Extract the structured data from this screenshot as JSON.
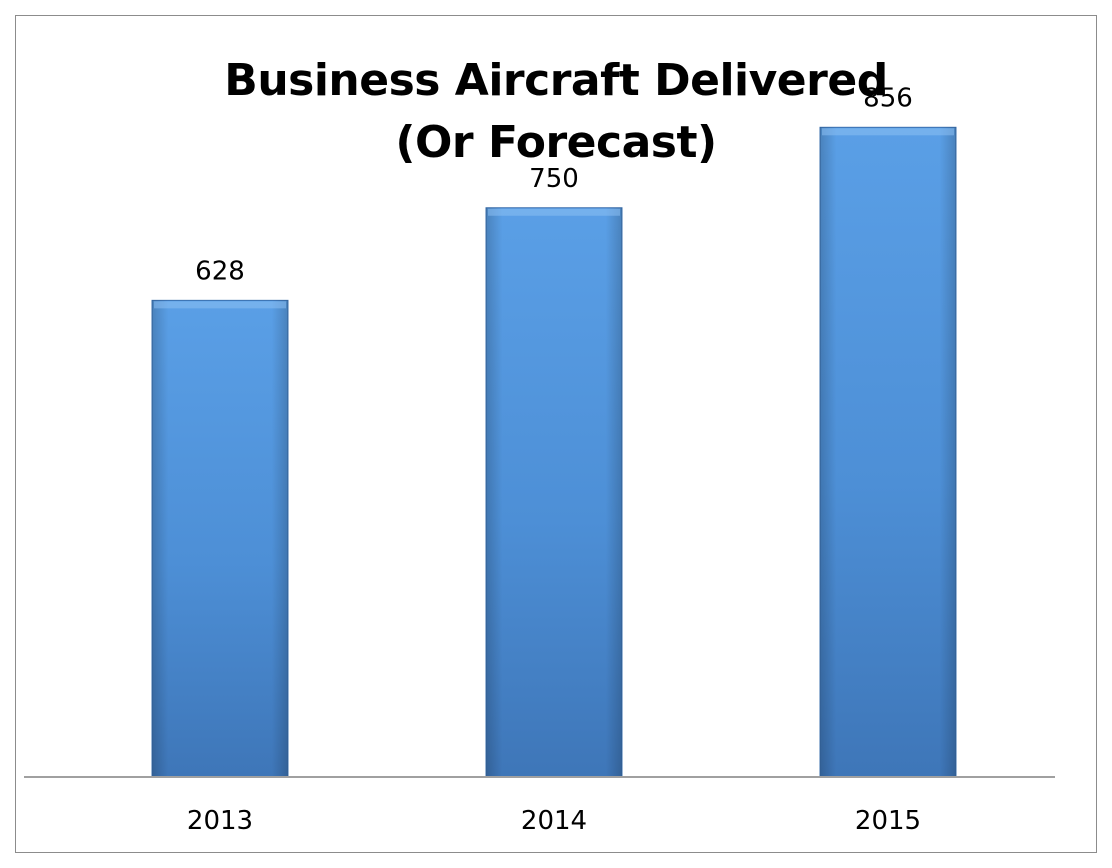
{
  "chart_data": {
    "type": "bar",
    "title": "Business Aircraft Delivered",
    "subtitle": "(Or Forecast)",
    "categories": [
      "2013",
      "2014",
      "2015"
    ],
    "values": [
      628,
      750,
      856
    ],
    "data_labels": [
      "628",
      "750",
      "856"
    ],
    "xlabel": "",
    "ylabel": "",
    "ylim": [
      0,
      1000
    ],
    "grid": false,
    "legend": "none",
    "colors": {
      "bar_top": "#5a9fe6",
      "bar_mid": "#4d8fd6",
      "bar_bottom": "#3e76b8",
      "axis": "#a0a0a0"
    }
  }
}
